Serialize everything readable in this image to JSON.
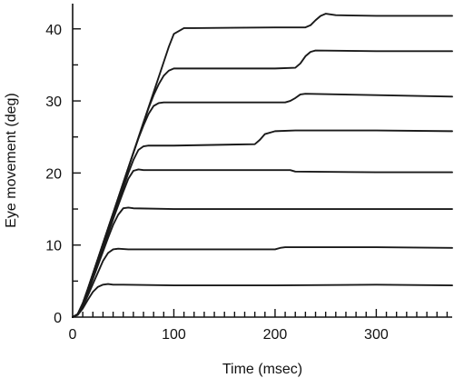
{
  "chart_data": {
    "type": "line",
    "title": "",
    "xlabel": "Time (msec)",
    "ylabel": "Eye movement (deg)",
    "xlim": [
      0,
      375
    ],
    "ylim": [
      0,
      43.5
    ],
    "x_ticks": [
      0,
      100,
      200,
      300
    ],
    "y_ticks": [
      0,
      10,
      20,
      30,
      40
    ],
    "x_minor_step": 10,
    "y_minor_step": 5,
    "grid": false,
    "legend": "none",
    "line_color": "#1a1a1a",
    "series": [
      {
        "x": [
          0,
          5,
          10,
          15,
          20,
          25,
          30,
          35,
          40,
          50,
          100,
          200,
          300,
          375
        ],
        "y": [
          0,
          0.3,
          1.2,
          2.4,
          3.5,
          4.2,
          4.5,
          4.6,
          4.5,
          4.5,
          4.4,
          4.4,
          4.5,
          4.4
        ]
      },
      {
        "x": [
          0,
          5,
          10,
          15,
          20,
          25,
          30,
          35,
          40,
          45,
          55,
          100,
          200,
          205,
          210,
          300,
          375
        ],
        "y": [
          0,
          0.4,
          1.5,
          3.0,
          4.6,
          6.2,
          7.8,
          8.9,
          9.4,
          9.5,
          9.4,
          9.4,
          9.4,
          9.6,
          9.7,
          9.7,
          9.6
        ]
      },
      {
        "x": [
          0,
          5,
          10,
          15,
          20,
          25,
          30,
          35,
          40,
          45,
          50,
          55,
          60,
          100,
          200,
          300,
          375
        ],
        "y": [
          0,
          0.4,
          1.7,
          3.4,
          5.3,
          7.2,
          9.1,
          11.0,
          12.8,
          14.2,
          15.1,
          15.2,
          15.1,
          15.0,
          15.0,
          15.0,
          15.0
        ]
      },
      {
        "x": [
          0,
          5,
          10,
          15,
          20,
          25,
          30,
          35,
          40,
          45,
          50,
          55,
          60,
          65,
          70,
          100,
          200,
          215,
          220,
          300,
          375
        ],
        "y": [
          0,
          0.4,
          1.8,
          3.6,
          5.6,
          7.6,
          9.6,
          11.6,
          13.6,
          15.5,
          17.4,
          19.2,
          20.3,
          20.5,
          20.4,
          20.4,
          20.4,
          20.4,
          20.2,
          20.1,
          20.1
        ]
      },
      {
        "x": [
          0,
          5,
          10,
          15,
          20,
          25,
          30,
          35,
          40,
          45,
          50,
          55,
          60,
          65,
          70,
          75,
          100,
          180,
          185,
          190,
          200,
          220,
          300,
          375
        ],
        "y": [
          0,
          0.4,
          1.9,
          3.8,
          5.8,
          7.8,
          9.9,
          12.0,
          14.0,
          16.0,
          18.0,
          20.0,
          21.8,
          23.2,
          23.7,
          23.8,
          23.8,
          24.0,
          24.6,
          25.4,
          25.8,
          25.9,
          25.9,
          25.8
        ]
      },
      {
        "x": [
          0,
          5,
          10,
          15,
          20,
          25,
          30,
          35,
          40,
          45,
          50,
          55,
          60,
          65,
          70,
          75,
          80,
          85,
          90,
          100,
          200,
          210,
          215,
          220,
          225,
          230,
          300,
          375
        ],
        "y": [
          0,
          0.4,
          1.9,
          3.9,
          6.0,
          8.1,
          10.2,
          12.3,
          14.4,
          16.5,
          18.6,
          20.7,
          22.8,
          24.8,
          26.6,
          28.2,
          29.3,
          29.7,
          29.8,
          29.8,
          29.8,
          29.8,
          30.0,
          30.4,
          30.9,
          31.0,
          30.8,
          30.6
        ]
      },
      {
        "x": [
          0,
          5,
          10,
          15,
          20,
          25,
          30,
          35,
          40,
          45,
          50,
          55,
          60,
          65,
          70,
          75,
          80,
          85,
          90,
          95,
          100,
          110,
          200,
          220,
          225,
          230,
          235,
          240,
          300,
          375
        ],
        "y": [
          0,
          0.4,
          1.9,
          3.9,
          6.0,
          8.1,
          10.2,
          12.3,
          14.4,
          16.5,
          18.6,
          20.7,
          22.8,
          24.9,
          27.0,
          29.0,
          30.8,
          32.3,
          33.5,
          34.2,
          34.5,
          34.5,
          34.5,
          34.6,
          35.2,
          36.2,
          36.8,
          37.0,
          36.9,
          36.9
        ]
      },
      {
        "x": [
          0,
          5,
          10,
          15,
          20,
          25,
          30,
          35,
          40,
          45,
          50,
          55,
          60,
          65,
          70,
          75,
          80,
          85,
          90,
          95,
          100,
          110,
          120,
          200,
          230,
          235,
          240,
          245,
          250,
          260,
          300,
          375
        ],
        "y": [
          0,
          0.4,
          1.9,
          3.9,
          6.0,
          8.1,
          10.2,
          12.3,
          14.4,
          16.5,
          18.6,
          20.7,
          22.8,
          24.9,
          27.0,
          29.1,
          31.2,
          33.3,
          35.4,
          37.5,
          39.3,
          40.1,
          40.1,
          40.2,
          40.2,
          40.5,
          41.2,
          41.8,
          42.1,
          41.9,
          41.8,
          41.8
        ]
      }
    ]
  }
}
